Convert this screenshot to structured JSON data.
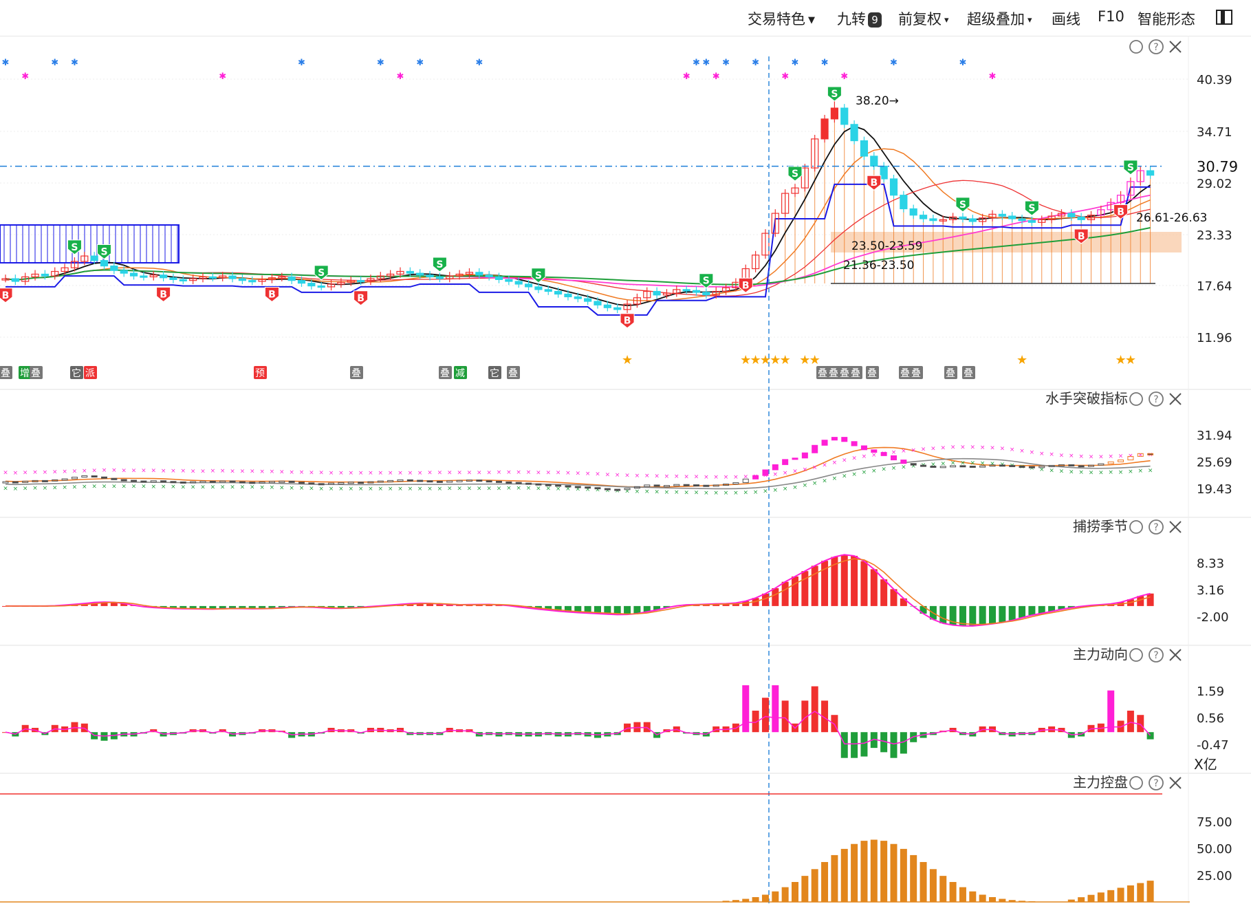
{
  "toolbar": {
    "items": [
      {
        "label": "交易特色",
        "caret": "▼"
      },
      {
        "label": "九转",
        "badge": "9"
      },
      {
        "label": "前复权",
        "caret": "▾"
      },
      {
        "label": "超级叠加",
        "caret": "▾"
      },
      {
        "label": "画线"
      },
      {
        "label": "F10"
      },
      {
        "label": "智能形态"
      }
    ],
    "layout_icon": "panel-layout-icon"
  },
  "colors": {
    "up": "#f0302e",
    "down": "#2bd3e6",
    "ma_black": "#111111",
    "ma_orange": "#f07a22",
    "ma_pink": "#ff3bd2",
    "ma_green": "#1f9e3a",
    "box_blue": "#1a1ae6",
    "zone": "#f8c9a6",
    "sell_badge": "#18b14a",
    "buy_badge": "#ee3233",
    "star": "#f7a400",
    "magenta": "#ff1fd6",
    "crosshair": "#1e7fd8"
  },
  "chart_data": [
    {
      "name": "main-price",
      "type": "candlestick",
      "y_ticks": [
        "40.39",
        "34.71",
        "29.02",
        "23.33",
        "17.64",
        "11.96"
      ],
      "ylim": [
        11.96,
        40.39
      ],
      "current_price": "30.79",
      "annotations": {
        "high_label": "38.20→",
        "range_label_1": "23.50-23.59",
        "range_label_2": "21.36-23.50",
        "range_label_3": "26.61-26.63"
      },
      "badges": {
        "sell": "S",
        "buy": "B"
      },
      "event_tags": [
        "叠",
        "增",
        "叠",
        "它",
        "派",
        "预",
        "叠",
        "叠",
        "减",
        "它",
        "叠",
        "叠",
        "叠",
        "叠",
        "叠",
        "叠",
        "叠",
        "叠",
        "叠",
        "叠"
      ],
      "series": [
        {
          "name": "close",
          "values": [
            18.4,
            18.1,
            18.6,
            18.9,
            18.7,
            19.2,
            19.6,
            20.3,
            20.9,
            20.4,
            19.8,
            19.3,
            19.0,
            18.7,
            18.6,
            18.8,
            18.5,
            18.3,
            18.2,
            18.4,
            18.6,
            18.5,
            18.7,
            18.4,
            18.2,
            18.1,
            18.3,
            18.5,
            18.6,
            18.2,
            17.9,
            17.6,
            17.5,
            17.8,
            18.0,
            18.2,
            18.1,
            18.4,
            18.7,
            18.9,
            19.2,
            19.0,
            18.8,
            18.6,
            18.4,
            18.7,
            18.9,
            19.1,
            18.8,
            18.6,
            18.3,
            18.1,
            17.8,
            17.5,
            17.2,
            17.0,
            16.7,
            16.4,
            16.2,
            15.9,
            15.5,
            15.2,
            15.0,
            15.6,
            16.3,
            17.0,
            16.6,
            16.8,
            17.2,
            17.1,
            16.9,
            16.6,
            17.0,
            17.4,
            18.0,
            19.5,
            21.0,
            23.4,
            25.6,
            27.8,
            28.4,
            30.6,
            33.8,
            36.0,
            37.2,
            35.4,
            33.6,
            31.9,
            30.8,
            29.4,
            27.6,
            26.1,
            25.4,
            25.0,
            24.8,
            24.9,
            25.2,
            25.0,
            24.7,
            25.1,
            25.5,
            25.3,
            25.0,
            24.8,
            24.6,
            24.9,
            25.3,
            25.6,
            25.2,
            24.9,
            25.4,
            26.0,
            26.8,
            27.6,
            29.1,
            30.3,
            29.8
          ]
        }
      ],
      "markers": {
        "sell_indices": [
          7,
          10,
          32,
          44,
          54,
          71,
          80,
          84,
          97,
          104,
          114
        ],
        "buy_indices": [
          0,
          16,
          27,
          36,
          63,
          75,
          88,
          109,
          113
        ],
        "star_indices": [
          63,
          75,
          76,
          77,
          78,
          79,
          81,
          82,
          103,
          113,
          114
        ]
      }
    },
    {
      "name": "sailor-breakout",
      "type": "candlestick",
      "title": "水手突破指标",
      "y_ticks": [
        "31.94",
        "25.69",
        "19.43"
      ],
      "ylim": [
        19.43,
        31.94
      ]
    },
    {
      "name": "fishing-season",
      "type": "bar",
      "title": "捕捞季节",
      "y_ticks": [
        "8.33",
        "3.16",
        "-2.00"
      ],
      "ylim": [
        -2.0,
        8.33
      ]
    },
    {
      "name": "main-force-direction",
      "type": "bar",
      "title": "主力动向",
      "y_ticks": [
        "1.59",
        "0.56",
        "-0.47"
      ],
      "unit": "X亿",
      "ylim": [
        -0.47,
        1.59
      ]
    },
    {
      "name": "main-force-control",
      "type": "bar",
      "title": "主力控盘",
      "y_ticks": [
        "75.00",
        "50.00",
        "25.00"
      ],
      "ylim": [
        0,
        100
      ]
    }
  ]
}
